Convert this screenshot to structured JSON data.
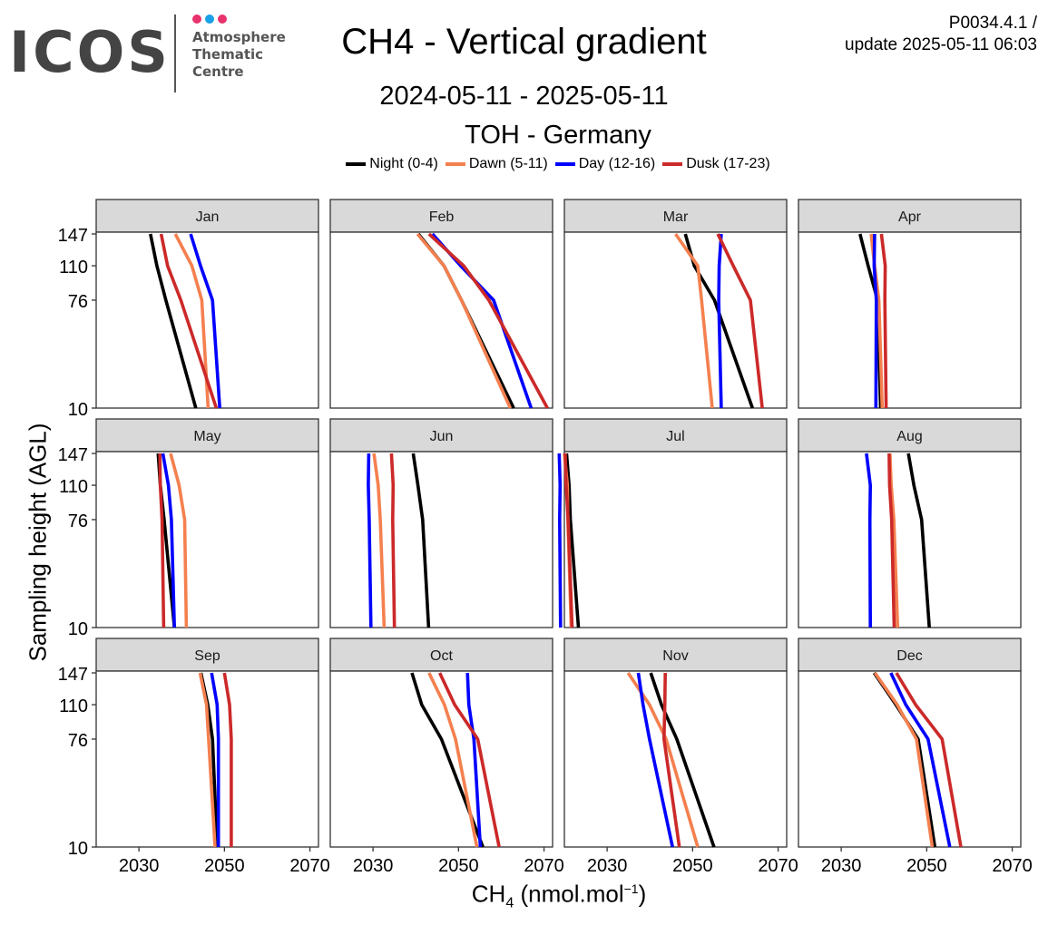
{
  "header": {
    "logo_text": "ICOS",
    "logo_subtitle_lines": [
      "Atmosphere",
      "Thematic",
      "Centre"
    ],
    "logo_dot_colors": [
      "#e8336d",
      "#1aa0e8",
      "#e8336d"
    ],
    "title": "CH4 - Vertical gradient",
    "period": "2024-05-11 - 2025-05-11",
    "station": "TOH - Germany",
    "version_line1": "P0034.4.1 /",
    "version_line2": "update  2025-05-11 06:03"
  },
  "chart_data": {
    "type": "line",
    "layout": "facet-grid",
    "ylabel": "Sampling height (AGL)",
    "xlabel": {
      "main": "CH",
      "subscript": "4",
      "unit_prefix": " (nmol.mol",
      "superscript": "−1",
      "unit_suffix": ")"
    },
    "xlim": [
      2020,
      2072
    ],
    "x_ticks": [
      2030,
      2050,
      2070
    ],
    "y_ticks": [
      10,
      76,
      110,
      147
    ],
    "y_scale": "sqrt",
    "grid": false,
    "legend_position": "top",
    "series_styles": [
      {
        "name": "Night (0-4)",
        "color": "#000000"
      },
      {
        "name": "Dawn (5-11)",
        "color": "#f4804f"
      },
      {
        "name": "Day (12-16)",
        "color": "#0000ff"
      },
      {
        "name": "Dusk (17-23)",
        "color": "#cc2929"
      }
    ],
    "heights": [
      10,
      76,
      110,
      147
    ],
    "panels": [
      {
        "label": "Jan",
        "series": [
          {
            "name": "Night (0-4)",
            "values": [
              2043.3,
              2036.3,
              2034.2,
              2032.7
            ]
          },
          {
            "name": "Dawn (5-11)",
            "values": [
              2046.2,
              2044.7,
              2042.4,
              2038.5
            ]
          },
          {
            "name": "Day (12-16)",
            "values": [
              2048.9,
              2047.2,
              2044.4,
              2042.1
            ]
          },
          {
            "name": "Dusk (17-23)",
            "values": [
              2048.1,
              2039.8,
              2036.7,
              2035.2
            ]
          }
        ]
      },
      {
        "label": "Feb",
        "series": [
          {
            "name": "Night (0-4)",
            "values": [
              2062.9,
              2050.7,
              2046.6,
              2040.6
            ]
          },
          {
            "name": "Dawn (5-11)",
            "values": [
              2062.1,
              2050.7,
              2046.6,
              2040.4
            ]
          },
          {
            "name": "Day (12-16)",
            "values": [
              2067.0,
              2058.2,
              2050.5,
              2043.9
            ]
          },
          {
            "name": "Dusk (17-23)",
            "values": [
              2070.8,
              2057.1,
              2051.2,
              2043.1
            ]
          }
        ]
      },
      {
        "label": "Mar",
        "series": [
          {
            "name": "Night (0-4)",
            "values": [
              2064.0,
              2055.1,
              2050.4,
              2048.3
            ]
          },
          {
            "name": "Dawn (5-11)",
            "values": [
              2054.6,
              2052.1,
              2051.2,
              2046.0
            ]
          },
          {
            "name": "Day (12-16)",
            "values": [
              2056.7,
              2056.1,
              2056.2,
              2056.7
            ]
          },
          {
            "name": "Dusk (17-23)",
            "values": [
              2066.3,
              2063.5,
              2059.5,
              2055.9
            ]
          }
        ]
      },
      {
        "label": "Apr",
        "series": [
          {
            "name": "Night (0-4)",
            "values": [
              2039.2,
              2038.5,
              2036.3,
              2034.4
            ]
          },
          {
            "name": "Dawn (5-11)",
            "values": [
              2039.6,
              2038.8,
              2037.8,
              2037.0
            ]
          },
          {
            "name": "Day (12-16)",
            "values": [
              2038.1,
              2038.2,
              2037.7,
              2037.8
            ]
          },
          {
            "name": "Dusk (17-23)",
            "values": [
              2040.5,
              2040.2,
              2040.3,
              2039.4
            ]
          }
        ]
      },
      {
        "label": "May",
        "series": [
          {
            "name": "Night (0-4)",
            "values": [
              2038.3,
              2035.9,
              2035.0,
              2034.5
            ]
          },
          {
            "name": "Dawn (5-11)",
            "values": [
              2041.1,
              2040.7,
              2039.4,
              2037.4
            ]
          },
          {
            "name": "Day (12-16)",
            "values": [
              2038.3,
              2037.6,
              2036.9,
              2035.6
            ]
          },
          {
            "name": "Dusk (17-23)",
            "values": [
              2035.8,
              2035.4,
              2035.0,
              2034.9
            ]
          }
        ]
      },
      {
        "label": "Jun",
        "series": [
          {
            "name": "Night (0-4)",
            "values": [
              2043.0,
              2041.6,
              2040.5,
              2039.4
            ]
          },
          {
            "name": "Dawn (5-11)",
            "values": [
              2032.6,
              2031.7,
              2031.2,
              2030.2
            ]
          },
          {
            "name": "Day (12-16)",
            "values": [
              2029.5,
              2029.1,
              2028.9,
              2029.0
            ]
          },
          {
            "name": "Dusk (17-23)",
            "values": [
              2035.0,
              2034.6,
              2034.7,
              2034.3
            ]
          }
        ]
      },
      {
        "label": "Jul",
        "series": [
          {
            "name": "Night (0-4)",
            "values": [
              2023.3,
              2021.4,
              2021.1,
              2020.5
            ]
          },
          {
            "name": "Dawn (5-11)",
            "values": [
              2021.6,
              2020.8,
              2020.7,
              2020.0
            ]
          },
          {
            "name": "Day (12-16)",
            "values": [
              2019.1,
              2018.9,
              2019.0,
              2018.8
            ]
          },
          {
            "name": "Dusk (17-23)",
            "values": [
              2021.8,
              2020.9,
              2020.4,
              2020.2
            ]
          }
        ]
      },
      {
        "label": "Aug",
        "series": [
          {
            "name": "Night (0-4)",
            "values": [
              2050.6,
              2048.8,
              2047.0,
              2045.7
            ]
          },
          {
            "name": "Dawn (5-11)",
            "values": [
              2043.2,
              2042.3,
              2041.7,
              2041.4
            ]
          },
          {
            "name": "Day (12-16)",
            "values": [
              2036.8,
              2036.7,
              2036.8,
              2035.9
            ]
          },
          {
            "name": "Dusk (17-23)",
            "values": [
              2042.4,
              2041.8,
              2041.3,
              2041.2
            ]
          }
        ]
      },
      {
        "label": "Sep",
        "series": [
          {
            "name": "Night (0-4)",
            "values": [
              2048.3,
              2047.2,
              2046.1,
              2044.5
            ]
          },
          {
            "name": "Dawn (5-11)",
            "values": [
              2047.8,
              2046.3,
              2045.8,
              2044.3
            ]
          },
          {
            "name": "Day (12-16)",
            "values": [
              2048.6,
              2048.6,
              2048.3,
              2047.0
            ]
          },
          {
            "name": "Dusk (17-23)",
            "values": [
              2051.6,
              2051.6,
              2051.2,
              2050.0
            ]
          }
        ]
      },
      {
        "label": "Oct",
        "series": [
          {
            "name": "Night (0-4)",
            "values": [
              2055.7,
              2046.0,
              2041.4,
              2039.1
            ]
          },
          {
            "name": "Dawn (5-11)",
            "values": [
              2054.3,
              2049.3,
              2046.7,
              2043.1
            ]
          },
          {
            "name": "Day (12-16)",
            "values": [
              2055.1,
              2053.6,
              2052.4,
              2052.1
            ]
          },
          {
            "name": "Dusk (17-23)",
            "values": [
              2059.5,
              2054.5,
              2049.1,
              2045.6
            ]
          }
        ]
      },
      {
        "label": "Nov",
        "series": [
          {
            "name": "Night (0-4)",
            "values": [
              2055.0,
              2046.3,
              2042.7,
              2040.2
            ]
          },
          {
            "name": "Dawn (5-11)",
            "values": [
              2051.2,
              2043.8,
              2039.9,
              2034.9
            ]
          },
          {
            "name": "Day (12-16)",
            "values": [
              2045.3,
              2039.9,
              2038.4,
              2037.3
            ]
          },
          {
            "name": "Dusk (17-23)",
            "values": [
              2046.9,
              2043.3,
              2043.5,
              2043.6
            ]
          }
        ]
      },
      {
        "label": "Dec",
        "series": [
          {
            "name": "Night (0-4)",
            "values": [
              2051.9,
              2048.0,
              2042.8,
              2037.7
            ]
          },
          {
            "name": "Dawn (5-11)",
            "values": [
              2051.3,
              2047.6,
              2043.1,
              2037.9
            ]
          },
          {
            "name": "Day (12-16)",
            "values": [
              2055.4,
              2050.3,
              2045.1,
              2041.6
            ]
          },
          {
            "name": "Dusk (17-23)",
            "values": [
              2058.0,
              2053.6,
              2047.4,
              2042.9
            ]
          }
        ]
      }
    ]
  }
}
